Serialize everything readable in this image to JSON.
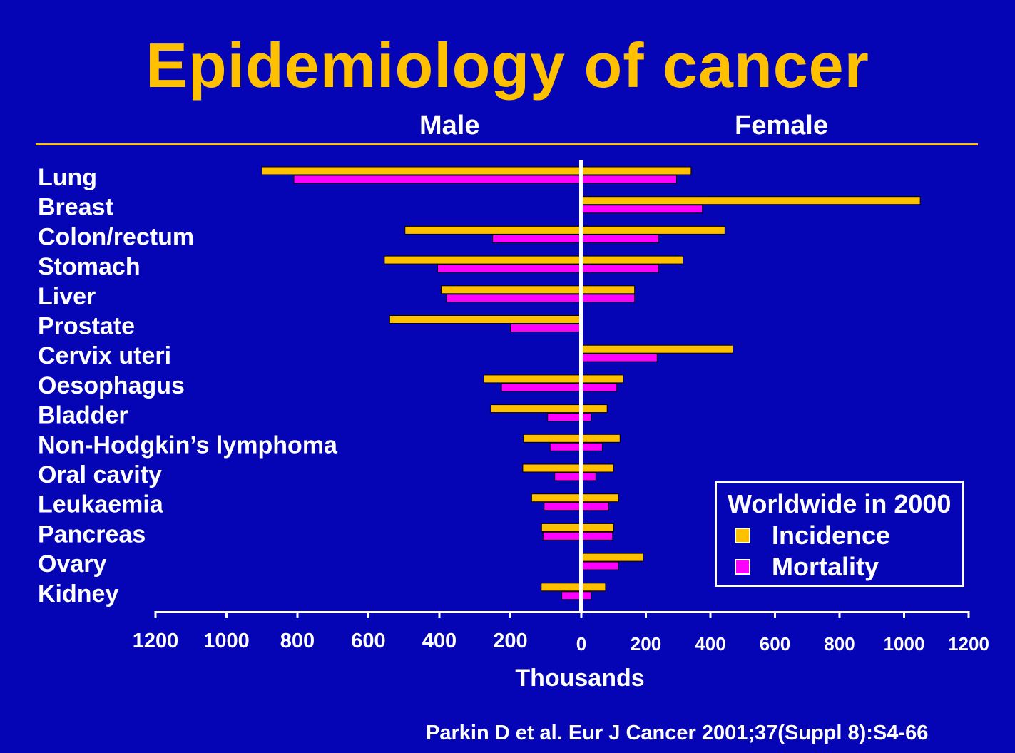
{
  "title": "Epidemiology of cancer",
  "headers": {
    "male": "Male",
    "female": "Female"
  },
  "legend": {
    "title": "Worldwide in 2000",
    "items": [
      {
        "label": "Incidence",
        "color": "#FFC000"
      },
      {
        "label": "Mortality",
        "color": "#FF00FF"
      }
    ]
  },
  "citation": "Parkin D et al.  Eur J Cancer 2001;37(Suppl 8):S4-66",
  "colors": {
    "background": "#0505B5",
    "title": "#FFC000",
    "incidence": "#FFC000",
    "mortality": "#FF00FF",
    "text": "#FFFFFF"
  },
  "chart_data": {
    "type": "bar",
    "orientation": "horizontal-diverging",
    "xlabel": "Thousands",
    "xlim": [
      -1200,
      1200
    ],
    "left_tick_labels": [
      "1200",
      "1000",
      "800",
      "600",
      "400",
      "200"
    ],
    "right_tick_labels": [
      "0",
      "200",
      "400",
      "600",
      "800",
      "1000",
      "1200"
    ],
    "categories": [
      "Lung",
      "Breast",
      "Colon/rectum",
      "Stomach",
      "Liver",
      "Prostate",
      "Cervix uteri",
      "Oesophagus",
      "Bladder",
      "Non-Hodgkin’s lymphoma",
      "Oral cavity",
      "Leukaemia",
      "Pancreas",
      "Ovary",
      "Kidney"
    ],
    "series": [
      {
        "name": "Incidence",
        "sex": "Male",
        "values": [
          900,
          0,
          497,
          555,
          395,
          540,
          0,
          275,
          255,
          163,
          165,
          140,
          112,
          0,
          113
        ]
      },
      {
        "name": "Mortality",
        "sex": "Male",
        "values": [
          810,
          0,
          250,
          405,
          380,
          200,
          0,
          225,
          95,
          88,
          75,
          105,
          108,
          0,
          55
        ]
      },
      {
        "name": "Incidence",
        "sex": "Female",
        "values": [
          340,
          1050,
          445,
          315,
          165,
          0,
          470,
          130,
          80,
          120,
          100,
          115,
          100,
          192,
          75
        ]
      },
      {
        "name": "Mortality",
        "sex": "Female",
        "values": [
          295,
          375,
          240,
          240,
          165,
          0,
          235,
          110,
          30,
          65,
          45,
          85,
          97,
          115,
          30
        ]
      }
    ]
  }
}
